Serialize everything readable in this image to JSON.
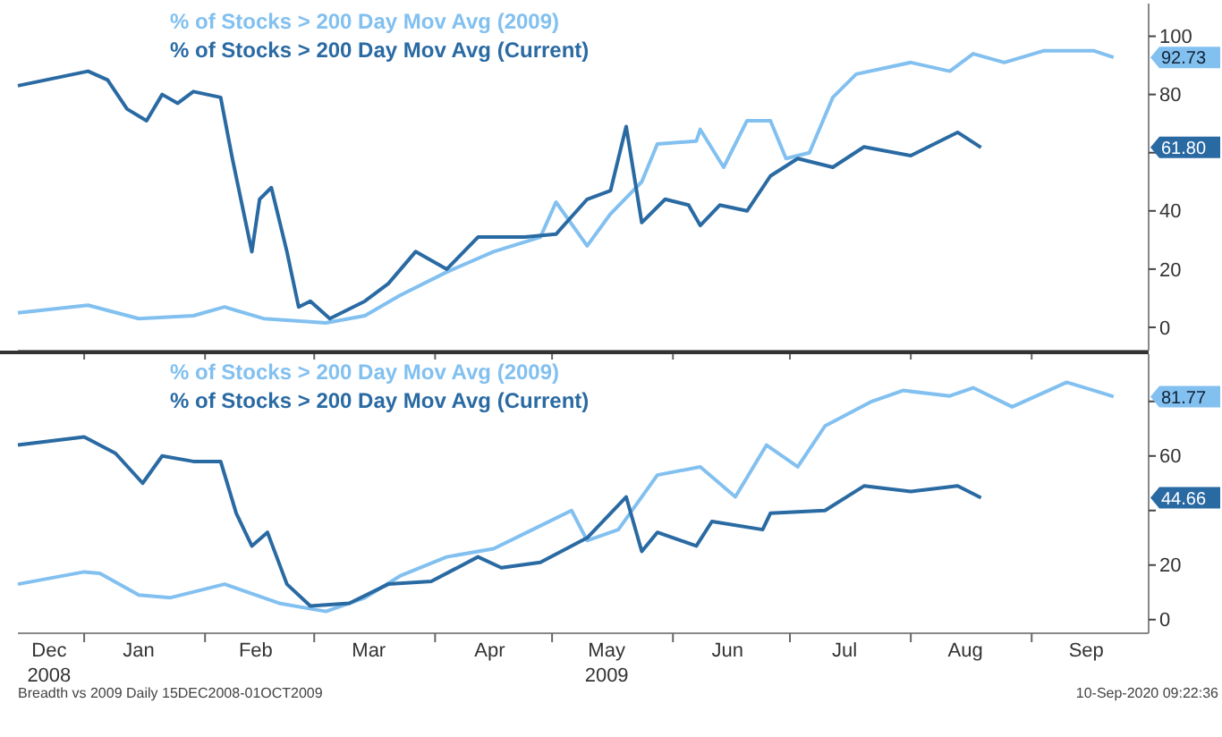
{
  "chart_data": [
    {
      "type": "line",
      "legend": "top left",
      "tick_labels": "y",
      "grid": false,
      "xlim": [
        "2008-12-15",
        "2009-10-01"
      ],
      "ylim": [
        -8,
        110
      ],
      "yticks": [
        0,
        20,
        40,
        {
          "value": 60,
          "label": null
        },
        80,
        100
      ],
      "xticks": [
        {
          "value": "2009-01-01",
          "label": null
        },
        {
          "value": "2009-02-01",
          "label": null
        },
        {
          "value": "2009-03-01",
          "label": null
        },
        {
          "value": "2009-04-01",
          "label": null
        },
        {
          "value": "2009-05-01",
          "label": null
        },
        {
          "value": "2009-06-01",
          "label": null
        },
        {
          "value": "2009-07-01",
          "label": null
        },
        {
          "value": "2009-08-01",
          "label": null
        },
        {
          "value": "2009-09-01",
          "label": null
        }
      ],
      "series": [
        {
          "name": "% of Stocks > 200 Day Mov Avg (2009)",
          "color": "#82c0f0",
          "x": [
            "2008-12-15",
            "2009-01-02",
            "2009-01-15",
            "2009-01-29",
            "2009-02-06",
            "2009-02-16",
            "2009-03-04",
            "2009-03-14",
            "2009-03-23",
            "2009-04-04",
            "2009-04-16",
            "2009-04-28",
            "2009-05-02",
            "2009-05-10",
            "2009-05-16",
            "2009-05-24",
            "2009-05-28",
            "2009-06-07",
            "2009-06-08",
            "2009-06-14",
            "2009-06-20",
            "2009-06-26",
            "2009-06-30",
            "2009-07-06",
            "2009-07-12",
            "2009-07-18",
            "2009-08-01",
            "2009-08-11",
            "2009-08-17",
            "2009-08-25",
            "2009-09-04",
            "2009-09-17",
            "2009-09-22"
          ],
          "values": [
            5,
            7.6,
            3,
            4,
            7,
            3,
            1.5,
            4,
            11,
            19,
            26,
            31,
            43,
            28,
            39,
            50,
            63,
            64,
            68,
            55,
            71,
            71,
            58,
            60,
            79,
            87,
            91,
            88,
            94,
            91,
            95,
            95,
            92.73
          ]
        },
        {
          "name": "% of Stocks > 200 Day Mov Avg (Current)",
          "color": "#2a6aa3",
          "x": [
            "2008-12-15",
            "2009-01-02",
            "2009-01-07",
            "2009-01-12",
            "2009-01-17",
            "2009-01-21",
            "2009-01-25",
            "2009-01-29",
            "2009-02-05",
            "2009-02-08",
            "2009-02-13",
            "2009-02-15",
            "2009-02-18",
            "2009-02-22",
            "2009-02-25",
            "2009-02-28",
            "2009-03-05",
            "2009-03-14",
            "2009-03-20",
            "2009-03-27",
            "2009-04-04",
            "2009-04-12",
            "2009-04-24",
            "2009-05-02",
            "2009-05-10",
            "2009-05-16",
            "2009-05-20",
            "2009-05-24",
            "2009-05-30",
            "2009-06-05",
            "2009-06-08",
            "2009-06-13",
            "2009-06-20",
            "2009-06-26",
            "2009-07-03",
            "2009-07-12",
            "2009-07-20",
            "2009-08-01",
            "2009-08-13",
            "2009-08-19"
          ],
          "values": [
            83,
            88,
            85,
            75,
            71,
            80,
            77,
            81,
            79,
            58,
            26,
            44,
            48,
            26,
            7,
            9,
            3,
            9,
            15,
            26,
            20,
            31,
            31,
            32,
            44,
            47,
            69,
            36,
            44,
            42,
            35,
            42,
            40,
            52,
            58,
            55,
            62,
            59,
            67,
            61.8
          ]
        }
      ],
      "annotations": [
        "92.73",
        "61.80"
      ]
    },
    {
      "type": "line",
      "legend": "top left",
      "grid": false,
      "xlim": [
        "2008-12-15",
        "2009-10-01"
      ],
      "ylim": [
        -5,
        96
      ],
      "yticks": [
        0,
        20,
        {
          "value": 40,
          "label": null
        },
        60,
        {
          "value": 80,
          "label": null
        }
      ],
      "xticks": [
        {
          "value": "2008-12-23",
          "label": "Dec\n2008"
        },
        {
          "value": "2009-01-01",
          "label": null
        },
        {
          "value": "2009-01-15",
          "label": "Jan"
        },
        {
          "value": "2009-02-01",
          "label": null
        },
        {
          "value": "2009-02-14",
          "label": "Feb"
        },
        {
          "value": "2009-03-01",
          "label": null
        },
        {
          "value": "2009-03-15",
          "label": "Mar"
        },
        {
          "value": "2009-04-01",
          "label": null
        },
        {
          "value": "2009-04-15",
          "label": "Apr"
        },
        {
          "value": "2009-05-01",
          "label": null
        },
        {
          "value": "2009-05-15",
          "label": "May\n2009"
        },
        {
          "value": "2009-06-01",
          "label": null
        },
        {
          "value": "2009-06-15",
          "label": "Jun"
        },
        {
          "value": "2009-07-01",
          "label": null
        },
        {
          "value": "2009-07-15",
          "label": "Jul"
        },
        {
          "value": "2009-08-01",
          "label": null
        },
        {
          "value": "2009-08-15",
          "label": "Aug"
        },
        {
          "value": "2009-09-01",
          "label": null
        },
        {
          "value": "2009-09-15",
          "label": "Sep"
        }
      ],
      "series": [
        {
          "name": "% of Stocks > 200 Day Mov Avg (2009)",
          "color": "#82c0f0",
          "x": [
            "2008-12-15",
            "2009-01-01",
            "2009-01-05",
            "2009-01-15",
            "2009-01-23",
            "2009-02-06",
            "2009-02-20",
            "2009-03-04",
            "2009-03-14",
            "2009-03-23",
            "2009-04-04",
            "2009-04-16",
            "2009-04-26",
            "2009-05-06",
            "2009-05-10",
            "2009-05-18",
            "2009-05-28",
            "2009-06-08",
            "2009-06-17",
            "2009-06-25",
            "2009-07-03",
            "2009-07-10",
            "2009-07-22",
            "2009-07-30",
            "2009-08-11",
            "2009-08-17",
            "2009-08-27",
            "2009-09-10",
            "2009-09-17",
            "2009-09-22"
          ],
          "values": [
            13,
            17.5,
            17,
            9,
            8,
            13,
            6,
            3,
            8,
            16,
            23,
            26,
            33,
            40,
            29,
            33,
            53,
            56,
            45,
            64,
            56,
            71,
            80,
            84,
            82,
            85,
            78,
            87,
            84,
            81.77
          ]
        },
        {
          "name": "% of Stocks > 200 Day Mov Avg (Current)",
          "color": "#2a6aa3",
          "x": [
            "2008-12-15",
            "2009-01-01",
            "2009-01-09",
            "2009-01-16",
            "2009-01-21",
            "2009-01-29",
            "2009-02-05",
            "2009-02-09",
            "2009-02-13",
            "2009-02-17",
            "2009-02-22",
            "2009-02-28",
            "2009-03-10",
            "2009-03-20",
            "2009-03-31",
            "2009-04-12",
            "2009-04-18",
            "2009-04-28",
            "2009-05-10",
            "2009-05-20",
            "2009-05-24",
            "2009-05-28",
            "2009-06-07",
            "2009-06-11",
            "2009-06-24",
            "2009-06-26",
            "2009-07-10",
            "2009-07-20",
            "2009-08-01",
            "2009-08-13",
            "2009-08-19"
          ],
          "values": [
            64,
            67,
            61,
            50,
            60,
            58,
            58,
            39,
            27,
            32,
            13,
            5,
            6,
            13,
            14,
            23,
            19,
            21,
            30,
            45,
            25,
            32,
            27,
            36,
            33,
            39,
            40,
            49,
            47,
            49,
            44.66
          ]
        }
      ],
      "annotations": [
        "81.77",
        "44.66",
        "Breadth vs 2009 Daily 15DEC2008-01OCT2009",
        "10-Sep-2020 09:22:36"
      ]
    }
  ]
}
